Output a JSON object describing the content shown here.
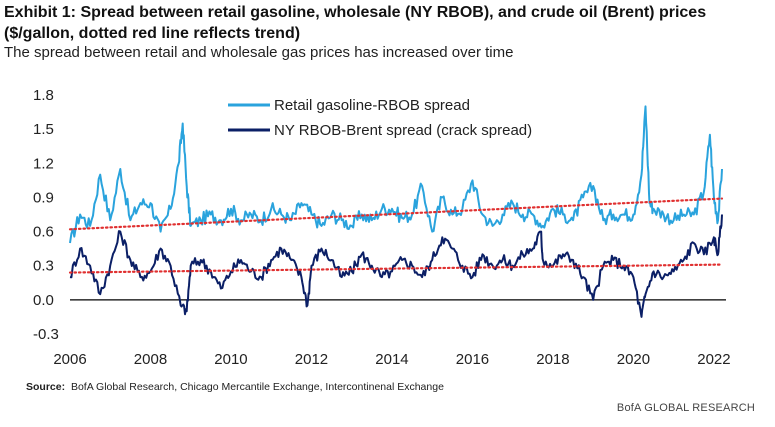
{
  "title": "Exhibit 1: Spread between retail gasoline, wholesale (NY RBOB),  and crude oil (Brent)  prices ($/gallon, dotted red line reflects trend)",
  "subtitle": "The spread between retail and wholesale gas prices has increased over time",
  "source_label": "Source:",
  "source_text": "BofA Global Research, Chicago Mercantile Exchange,  Intercontinenal  Exchange",
  "footer": "BofA GLOBAL RESEARCH",
  "colors": {
    "retail_spread": "#2aa3dd",
    "crack_spread": "#0b1f66",
    "trend": "#e03030",
    "zero_line": "#000000"
  },
  "chart_data": {
    "type": "line",
    "title": "Exhibit 1: Spread between retail gasoline, wholesale (NY RBOB),  and crude oil (Brent)  prices ($/gallon, dotted red line reflects trend)",
    "xlabel": "",
    "ylabel": "",
    "xlim": [
      2006,
      2022.3
    ],
    "ylim": [
      -0.3,
      1.8
    ],
    "x_ticks": [
      "2006",
      "2008",
      "2010",
      "2012",
      "2014",
      "2016",
      "2018",
      "2020",
      "2022"
    ],
    "y_ticks": [
      "1.8",
      "1.5",
      "1.2",
      "0.9",
      "0.6",
      "0.3",
      "0.0",
      "-0.3"
    ],
    "legend_position": "top-center",
    "grid": false,
    "series": [
      {
        "name": "Retail gasoline-RBOB spread",
        "x": [
          2006.0,
          2006.25,
          2006.5,
          2006.75,
          2007.0,
          2007.25,
          2007.5,
          2007.75,
          2008.0,
          2008.25,
          2008.5,
          2008.7,
          2008.8,
          2008.9,
          2009.0,
          2009.25,
          2009.5,
          2009.75,
          2010.0,
          2010.25,
          2010.5,
          2010.75,
          2011.0,
          2011.25,
          2011.5,
          2011.75,
          2012.0,
          2012.25,
          2012.5,
          2012.75,
          2013.0,
          2013.25,
          2013.5,
          2013.75,
          2014.0,
          2014.25,
          2014.5,
          2014.75,
          2015.0,
          2015.25,
          2015.5,
          2015.75,
          2016.0,
          2016.25,
          2016.5,
          2016.75,
          2017.0,
          2017.25,
          2017.5,
          2017.75,
          2018.0,
          2018.25,
          2018.5,
          2018.75,
          2019.0,
          2019.25,
          2019.5,
          2019.75,
          2020.0,
          2020.2,
          2020.3,
          2020.4,
          2020.5,
          2020.75,
          2021.0,
          2021.25,
          2021.5,
          2021.75,
          2021.9,
          2022.0,
          2022.1,
          2022.2
        ],
        "values": [
          0.5,
          0.75,
          0.65,
          1.1,
          0.7,
          1.15,
          0.7,
          0.85,
          0.85,
          0.6,
          0.8,
          1.2,
          1.55,
          1.0,
          0.65,
          0.7,
          0.75,
          0.7,
          0.8,
          0.7,
          0.75,
          0.7,
          0.8,
          0.75,
          0.7,
          0.85,
          0.75,
          0.65,
          0.75,
          0.7,
          0.65,
          0.75,
          0.7,
          0.8,
          0.8,
          0.72,
          0.75,
          1.0,
          0.6,
          0.9,
          0.75,
          0.8,
          1.05,
          0.75,
          0.65,
          0.75,
          0.85,
          0.75,
          0.75,
          0.65,
          0.8,
          0.75,
          0.7,
          0.9,
          1.0,
          0.7,
          0.75,
          0.75,
          0.75,
          1.1,
          1.7,
          0.85,
          0.8,
          0.75,
          0.7,
          0.75,
          0.75,
          0.95,
          1.45,
          0.9,
          0.7,
          1.15
        ]
      },
      {
        "name": "NY RBOB-Brent spread (crack spread)",
        "x": [
          2006.0,
          2006.25,
          2006.5,
          2006.75,
          2007.0,
          2007.25,
          2007.5,
          2007.75,
          2008.0,
          2008.25,
          2008.5,
          2008.75,
          2008.9,
          2009.0,
          2009.25,
          2009.5,
          2009.75,
          2010.0,
          2010.25,
          2010.5,
          2010.75,
          2011.0,
          2011.25,
          2011.5,
          2011.75,
          2011.9,
          2012.0,
          2012.25,
          2012.5,
          2012.75,
          2013.0,
          2013.25,
          2013.5,
          2013.75,
          2014.0,
          2014.25,
          2014.5,
          2014.75,
          2015.0,
          2015.25,
          2015.5,
          2015.75,
          2016.0,
          2016.25,
          2016.5,
          2016.75,
          2017.0,
          2017.25,
          2017.5,
          2017.7,
          2017.75,
          2018.0,
          2018.25,
          2018.5,
          2018.75,
          2019.0,
          2019.25,
          2019.5,
          2019.75,
          2020.0,
          2020.2,
          2020.3,
          2020.5,
          2020.75,
          2021.0,
          2021.25,
          2021.5,
          2021.75,
          2022.0,
          2022.1,
          2022.2
        ],
        "values": [
          0.2,
          0.45,
          0.3,
          0.05,
          0.3,
          0.6,
          0.35,
          0.2,
          0.25,
          0.45,
          0.3,
          -0.05,
          -0.1,
          0.3,
          0.35,
          0.25,
          0.1,
          0.25,
          0.35,
          0.25,
          0.2,
          0.35,
          0.45,
          0.35,
          0.2,
          -0.05,
          0.3,
          0.45,
          0.35,
          0.2,
          0.25,
          0.4,
          0.3,
          0.2,
          0.25,
          0.35,
          0.3,
          0.2,
          0.35,
          0.55,
          0.45,
          0.3,
          0.2,
          0.4,
          0.3,
          0.35,
          0.3,
          0.4,
          0.45,
          0.6,
          0.35,
          0.3,
          0.4,
          0.35,
          0.2,
          0.0,
          0.3,
          0.35,
          0.3,
          0.2,
          -0.15,
          0.05,
          0.25,
          0.2,
          0.25,
          0.35,
          0.5,
          0.4,
          0.55,
          0.4,
          0.75
        ]
      }
    ],
    "trend_lines": [
      {
        "x": [
          2006.0,
          2022.2
        ],
        "values": [
          0.62,
          0.89
        ]
      },
      {
        "x": [
          2006.0,
          2022.2
        ],
        "values": [
          0.24,
          0.31
        ]
      }
    ]
  }
}
